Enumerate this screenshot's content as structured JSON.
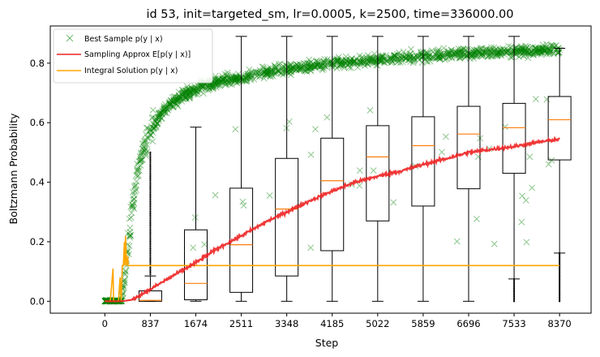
{
  "chart_data": {
    "type": "line",
    "title": "id 53, init=targeted_sm, lr=0.0005, k=2500, time=336000.00",
    "xlabel": "Step",
    "ylabel": "Boltzmann Probability",
    "xlim": [
      -1005,
      8950
    ],
    "ylim": [
      -0.04,
      0.925
    ],
    "x_ticks": [
      0,
      837,
      1674,
      2511,
      3348,
      4185,
      5022,
      5859,
      6696,
      7533,
      8370
    ],
    "x_tick_labels": [
      "0",
      "837",
      "1674",
      "2511",
      "3348",
      "4185",
      "5022",
      "5859",
      "6696",
      "7533",
      "8370"
    ],
    "y_ticks": [
      0.0,
      0.2,
      0.4,
      0.6,
      0.8
    ],
    "y_tick_labels": [
      "0.0",
      "0.2",
      "0.4",
      "0.6",
      "0.8"
    ],
    "legend": {
      "position": "top-left",
      "entries": [
        {
          "label": "Best Sample p(y | x)",
          "color": "#008000",
          "marker": "x"
        },
        {
          "label": "Sampling Approx E[p(y | x)]",
          "color": "#ee2222",
          "marker": "line"
        },
        {
          "label": "Integral Solution p(y | x)",
          "color": "#ffa500",
          "marker": "line"
        }
      ]
    },
    "colors": {
      "best_sample": "#008000",
      "sampling_approx": "#ee2222",
      "integral": "#ffa500",
      "median": "#ff7f0e"
    },
    "series": [
      {
        "name": "Best Sample p(y | x)",
        "style": "x-markers",
        "x": [
          0,
          150,
          300,
          380,
          450,
          520,
          600,
          700,
          837,
          1000,
          1200,
          1500,
          1800,
          2100,
          2511,
          3000,
          3348,
          3800,
          4185,
          4600,
          5022,
          5500,
          5859,
          6300,
          6696,
          7100,
          7533,
          8000,
          8370
        ],
        "y": [
          0.0,
          0.0,
          0.0,
          0.1,
          0.22,
          0.34,
          0.44,
          0.5,
          0.56,
          0.62,
          0.66,
          0.7,
          0.72,
          0.74,
          0.75,
          0.77,
          0.78,
          0.79,
          0.8,
          0.805,
          0.81,
          0.82,
          0.825,
          0.83,
          0.835,
          0.838,
          0.84,
          0.842,
          0.845
        ]
      },
      {
        "name": "Sampling Approx E[p(y | x)]",
        "style": "line",
        "x": [
          0,
          300,
          500,
          837,
          1200,
          1674,
          2100,
          2511,
          3000,
          3348,
          3800,
          4185,
          4600,
          5022,
          5500,
          5859,
          6300,
          6696,
          7100,
          7533,
          8000,
          8370
        ],
        "y": [
          0.0,
          0.0,
          0.005,
          0.04,
          0.08,
          0.13,
          0.18,
          0.22,
          0.27,
          0.3,
          0.34,
          0.37,
          0.4,
          0.42,
          0.44,
          0.46,
          0.48,
          0.5,
          0.51,
          0.52,
          0.535,
          0.545
        ]
      },
      {
        "name": "Integral Solution p(y | x)",
        "style": "step",
        "x": [
          0,
          100,
          150,
          160,
          200,
          250,
          280,
          300,
          320,
          340,
          360,
          370,
          380,
          400,
          420,
          430,
          8370
        ],
        "y": [
          0.0,
          0.0,
          0.11,
          0.0,
          0.0,
          0.0,
          0.08,
          0.0,
          0.12,
          0.12,
          0.2,
          0.12,
          0.22,
          0.12,
          0.15,
          0.12,
          0.12
        ]
      }
    ],
    "boxes": [
      {
        "x": 837,
        "q1": 0.0,
        "median": 0.003,
        "q3": 0.035,
        "whisker_low": 0.0,
        "whisker_high": 0.085
      },
      {
        "x": 1674,
        "q1": 0.005,
        "median": 0.06,
        "q3": 0.24,
        "whisker_low": 0.0,
        "whisker_high": 0.585
      },
      {
        "x": 2511,
        "q1": 0.03,
        "median": 0.19,
        "q3": 0.38,
        "whisker_low": 0.0,
        "whisker_high": 0.89
      },
      {
        "x": 3348,
        "q1": 0.085,
        "median": 0.31,
        "q3": 0.48,
        "whisker_low": 0.0,
        "whisker_high": 0.89
      },
      {
        "x": 4185,
        "q1": 0.17,
        "median": 0.405,
        "q3": 0.548,
        "whisker_low": 0.0,
        "whisker_high": 0.89
      },
      {
        "x": 5022,
        "q1": 0.27,
        "median": 0.485,
        "q3": 0.59,
        "whisker_low": 0.0,
        "whisker_high": 0.89
      },
      {
        "x": 5859,
        "q1": 0.32,
        "median": 0.523,
        "q3": 0.62,
        "whisker_low": 0.0,
        "whisker_high": 0.89
      },
      {
        "x": 6696,
        "q1": 0.378,
        "median": 0.562,
        "q3": 0.655,
        "whisker_low": 0.0,
        "whisker_high": 0.89
      },
      {
        "x": 7533,
        "q1": 0.43,
        "median": 0.583,
        "q3": 0.665,
        "whisker_low": 0.075,
        "whisker_high": 0.89
      },
      {
        "x": 8370,
        "q1": 0.475,
        "median": 0.61,
        "q3": 0.688,
        "whisker_low": 0.162,
        "whisker_high": 0.85
      }
    ],
    "grid": false
  }
}
